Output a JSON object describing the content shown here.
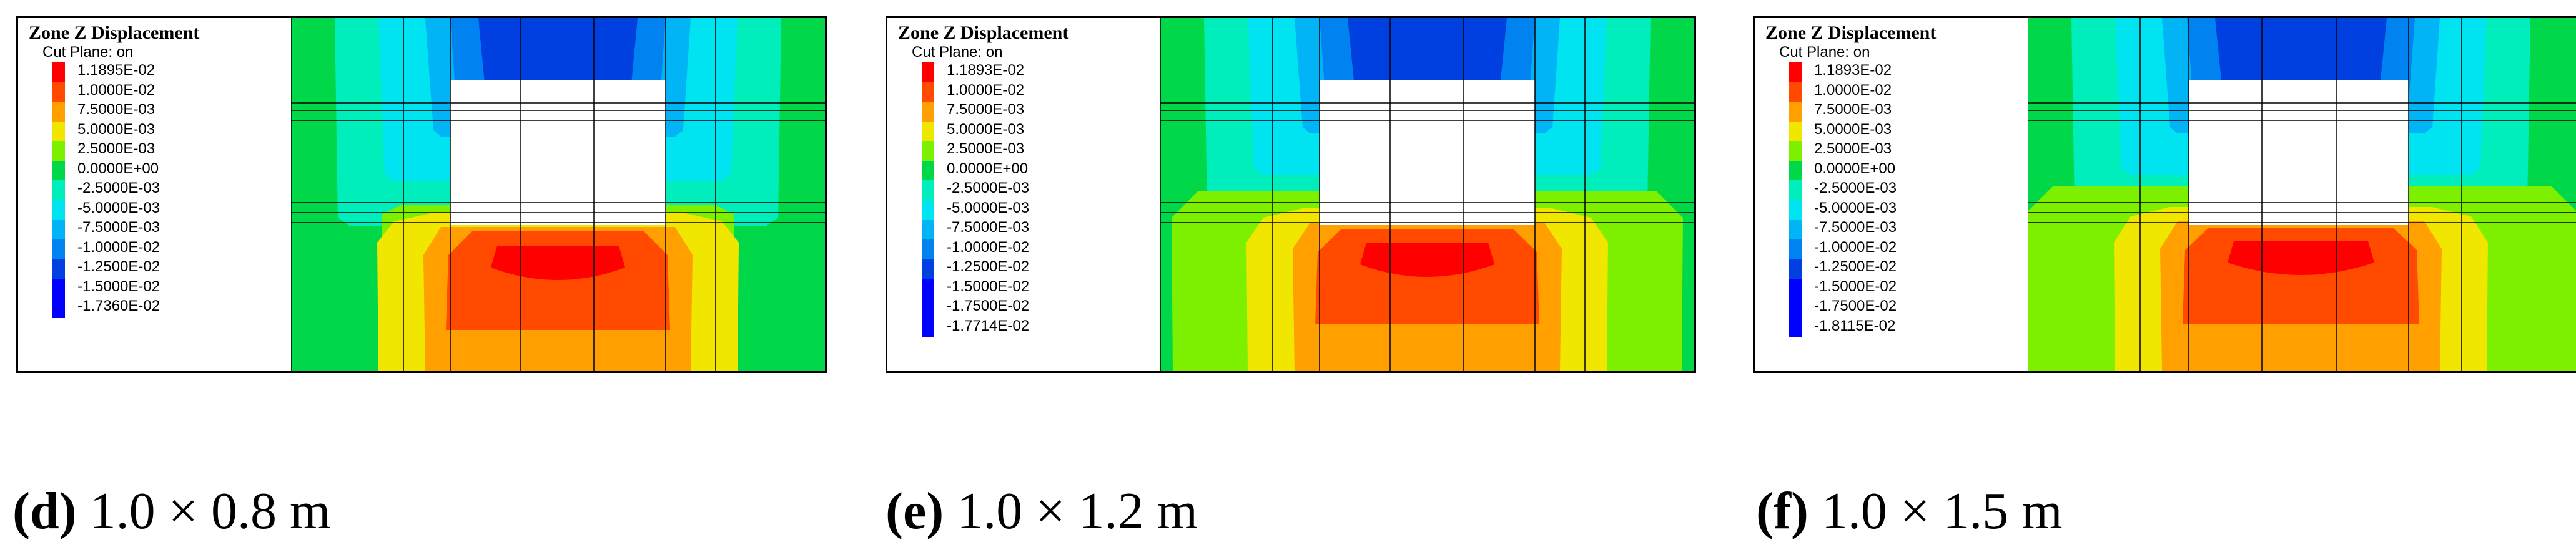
{
  "legend_colors": [
    "#ff0000",
    "#ff4a00",
    "#ff9f00",
    "#f0e600",
    "#7df000",
    "#00d84a",
    "#00eebc",
    "#00e3f0",
    "#00b4f5",
    "#0082f0",
    "#0040e0",
    "#0000ff"
  ],
  "panels": [
    {
      "id": "d",
      "legend_title": "Zone Z Displacement",
      "legend_subtitle": "Cut Plane: on",
      "legend_values": [
        "1.1895E-02",
        "1.0000E-02",
        "7.5000E-03",
        "5.0000E-03",
        "2.5000E-03",
        "0.0000E+00",
        "-2.5000E-03",
        "-5.0000E-03",
        "-7.5000E-03",
        "-1.0000E-02",
        "-1.2500E-02",
        "-1.5000E-02",
        "-1.7360E-02"
      ],
      "caption_letter": "(d)",
      "caption_text": "1.0 × 0.8 m"
    },
    {
      "id": "e",
      "legend_title": "Zone Z Displacement",
      "legend_subtitle": "Cut Plane: on",
      "legend_values": [
        "1.1893E-02",
        "1.0000E-02",
        "7.5000E-03",
        "5.0000E-03",
        "2.5000E-03",
        "0.0000E+00",
        "-2.5000E-03",
        "-5.0000E-03",
        "-7.5000E-03",
        "-1.0000E-02",
        "-1.2500E-02",
        "-1.5000E-02",
        "-1.7500E-02",
        "-1.7714E-02"
      ],
      "caption_letter": "(e)",
      "caption_text": "1.0 × 1.2 m"
    },
    {
      "id": "f",
      "legend_title": "Zone Z Displacement",
      "legend_subtitle": "Cut Plane: on",
      "legend_values": [
        "1.1893E-02",
        "1.0000E-02",
        "7.5000E-03",
        "5.0000E-03",
        "2.5000E-03",
        "0.0000E+00",
        "-2.5000E-03",
        "-5.0000E-03",
        "-7.5000E-03",
        "-1.0000E-02",
        "-1.2500E-02",
        "-1.5000E-02",
        "-1.7500E-02",
        "-1.8115E-02"
      ],
      "caption_letter": "(f)",
      "caption_text": "1.0 × 1.5 m"
    }
  ]
}
